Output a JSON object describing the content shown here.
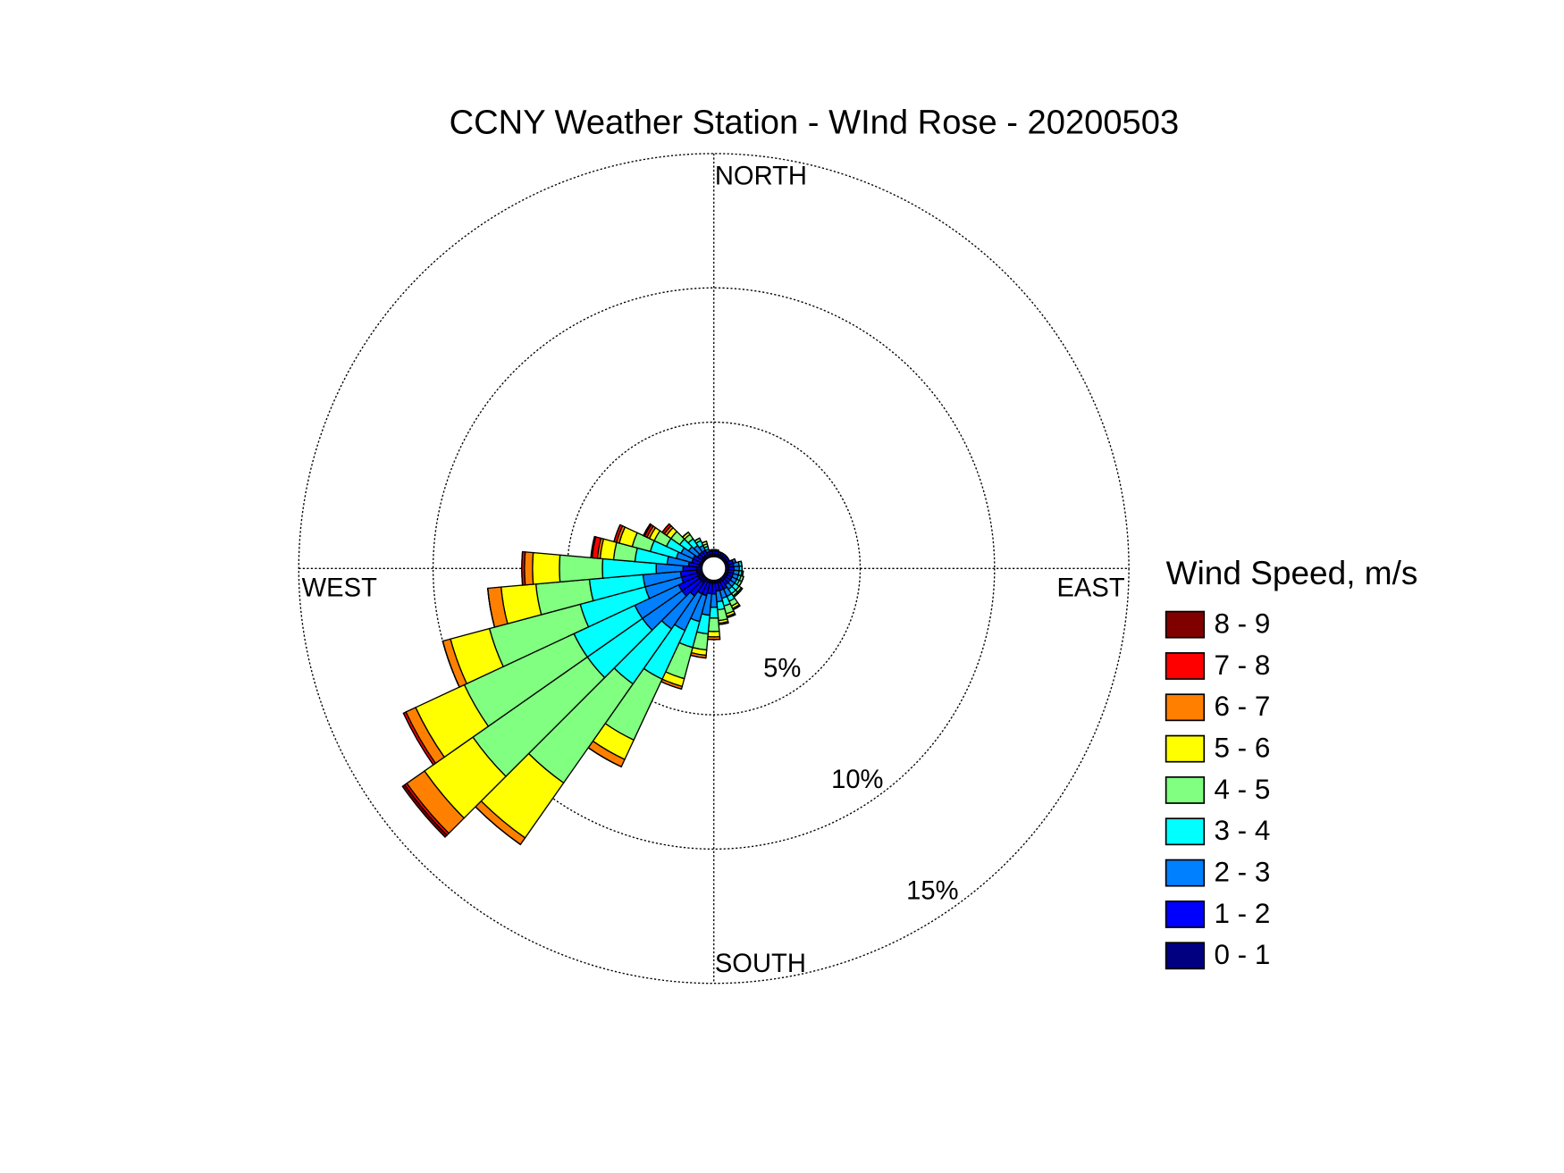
{
  "chart_data": {
    "type": "windrose",
    "title": "CCNY Weather Station - WInd Rose - 20200503",
    "legend_title": "Wind Speed, m/s",
    "direction_labels": {
      "north": "NORTH",
      "south": "SOUTH",
      "east": "EAST",
      "west": "WEST"
    },
    "directions": [
      0,
      10,
      20,
      30,
      40,
      50,
      60,
      70,
      80,
      90,
      100,
      110,
      120,
      130,
      140,
      150,
      160,
      170,
      180,
      190,
      200,
      210,
      220,
      230,
      240,
      250,
      260,
      270,
      280,
      290,
      300,
      310,
      320,
      330,
      340,
      350
    ],
    "rlim": [
      0,
      15
    ],
    "rticks": [
      {
        "value": 5,
        "label": "5%"
      },
      {
        "value": 10,
        "label": "10%"
      },
      {
        "value": 15,
        "label": "15%"
      }
    ],
    "series": [
      {
        "name": "0 - 1",
        "color": "#000080",
        "values": [
          0.1,
          0.1,
          0.1,
          0.1,
          0.1,
          0.1,
          0.1,
          0.1,
          0.1,
          0.1,
          0.1,
          0.1,
          0.1,
          0.1,
          0.1,
          0.1,
          0.1,
          0.1,
          0.1,
          0.1,
          0.1,
          0.1,
          0.2,
          0.2,
          0.2,
          0.2,
          0.2,
          0.2,
          0.1,
          0.1,
          0.1,
          0.1,
          0.1,
          0.1,
          0.1,
          0.1
        ]
      },
      {
        "name": "1 - 2",
        "color": "#0000ff",
        "values": [
          0.1,
          0.1,
          0.1,
          0.1,
          0.1,
          0.1,
          0.1,
          0.2,
          0.2,
          0.2,
          0.2,
          0.2,
          0.2,
          0.2,
          0.2,
          0.3,
          0.3,
          0.3,
          0.4,
          0.4,
          0.5,
          0.5,
          0.6,
          0.8,
          0.8,
          0.6,
          0.6,
          0.5,
          0.4,
          0.3,
          0.3,
          0.2,
          0.2,
          0.2,
          0.1,
          0.1
        ]
      },
      {
        "name": "2 - 3",
        "color": "#0080ff",
        "values": [
          0.05,
          0.05,
          0,
          0,
          0,
          0,
          0,
          0.1,
          0.2,
          0.2,
          0.2,
          0.2,
          0.2,
          0.2,
          0.2,
          0.3,
          0.3,
          0.4,
          0.5,
          0.8,
          1.0,
          1.5,
          1.5,
          1.8,
          1.8,
          1.4,
          1.4,
          1.0,
          0.8,
          0.6,
          0.5,
          0.4,
          0.3,
          0.2,
          0.1,
          0.05
        ]
      },
      {
        "name": "3 - 4",
        "color": "#00ffff",
        "values": [
          0,
          0,
          0,
          0,
          0,
          0,
          0,
          0,
          0.1,
          0.1,
          0.1,
          0.1,
          0.1,
          0.2,
          0.2,
          0.2,
          0.3,
          0.3,
          0.4,
          0.7,
          1.0,
          2.0,
          2.5,
          2.5,
          2.5,
          2.5,
          2.0,
          2.0,
          1.2,
          1.0,
          0.6,
          0.4,
          0.3,
          0.2,
          0.1,
          0
        ]
      },
      {
        "name": "4 - 5",
        "color": "#80ff80",
        "values": [
          0,
          0,
          0,
          0,
          0,
          0,
          0,
          0,
          0,
          0,
          0.05,
          0.1,
          0.1,
          0.1,
          0.1,
          0.2,
          0.3,
          0.4,
          0.5,
          0.6,
          1.2,
          2.5,
          4.5,
          5.2,
          4.5,
          3.5,
          2.0,
          1.6,
          0.8,
          0.7,
          0.5,
          0.4,
          0.2,
          0.1,
          0.1,
          0
        ]
      },
      {
        "name": "5 - 6",
        "color": "#ffff00",
        "values": [
          0,
          0,
          0,
          0,
          0,
          0,
          0,
          0,
          0,
          0,
          0,
          0,
          0,
          0.05,
          0.05,
          0.1,
          0.1,
          0.1,
          0.2,
          0.2,
          0.3,
          0.8,
          2.5,
          2.2,
          2.0,
          1.5,
          1.3,
          1.0,
          0.5,
          0.5,
          0.2,
          0.2,
          0.1,
          0,
          0.1,
          0
        ]
      },
      {
        "name": "6 - 7",
        "color": "#ff8000",
        "values": [
          0,
          0,
          0,
          0,
          0,
          0,
          0,
          0,
          0,
          0,
          0,
          0,
          0,
          0,
          0,
          0.05,
          0.05,
          0.05,
          0.1,
          0.1,
          0.1,
          0.3,
          0.3,
          0.8,
          0.4,
          0.3,
          0.5,
          0.3,
          0.1,
          0.1,
          0.1,
          0.1,
          0,
          0,
          0,
          0
        ]
      },
      {
        "name": "7 - 8",
        "color": "#ff0000",
        "values": [
          0,
          0,
          0,
          0,
          0,
          0,
          0,
          0,
          0,
          0,
          0,
          0,
          0,
          0,
          0,
          0,
          0,
          0,
          0,
          0,
          0,
          0,
          0,
          0.1,
          0.1,
          0,
          0,
          0.1,
          0.2,
          0.1,
          0.1,
          0.1,
          0,
          0,
          0,
          0
        ]
      },
      {
        "name": "8 - 9",
        "color": "#800000",
        "values": [
          0,
          0,
          0,
          0,
          0,
          0,
          0,
          0,
          0,
          0,
          0,
          0,
          0,
          0,
          0,
          0,
          0,
          0,
          0,
          0,
          0,
          0,
          0,
          0.1,
          0,
          0,
          0,
          0,
          0.05,
          0,
          0.05,
          0,
          0,
          0,
          0,
          0
        ]
      }
    ]
  }
}
